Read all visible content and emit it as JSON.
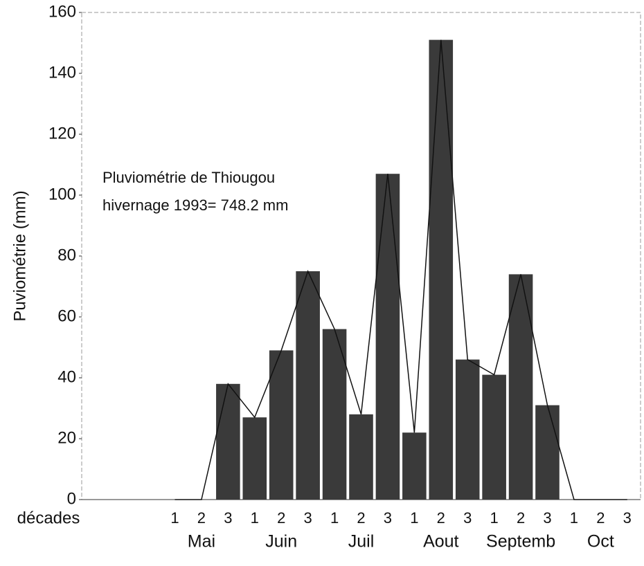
{
  "chart_data": {
    "type": "bar",
    "ylabel": "Puviométrie (mm)",
    "xlabel": "décades",
    "annotation": [
      "Pluviométrie de Thiougou",
      "hivernage 1993= 748.2 mm"
    ],
    "categories": [
      null,
      null,
      null,
      "1",
      "2",
      "3",
      "1",
      "2",
      "3",
      "1",
      "2",
      "3",
      "1",
      "2",
      "3",
      "1",
      "2",
      "3",
      "1",
      "2",
      "3"
    ],
    "months": [
      "Mai",
      "Juin",
      "Juil",
      "Aout",
      "Septemb",
      "Oct"
    ],
    "values": [
      null,
      null,
      null,
      0,
      0,
      38,
      27,
      49,
      75,
      56,
      28,
      107,
      22,
      151,
      46,
      41,
      74,
      31,
      0,
      0,
      0
    ],
    "color": "#3a3a3a",
    "line_color": "#111111",
    "ylim": [
      0,
      160
    ],
    "yticks": [
      0,
      20,
      40,
      60,
      80,
      100,
      120,
      140,
      160
    ]
  }
}
